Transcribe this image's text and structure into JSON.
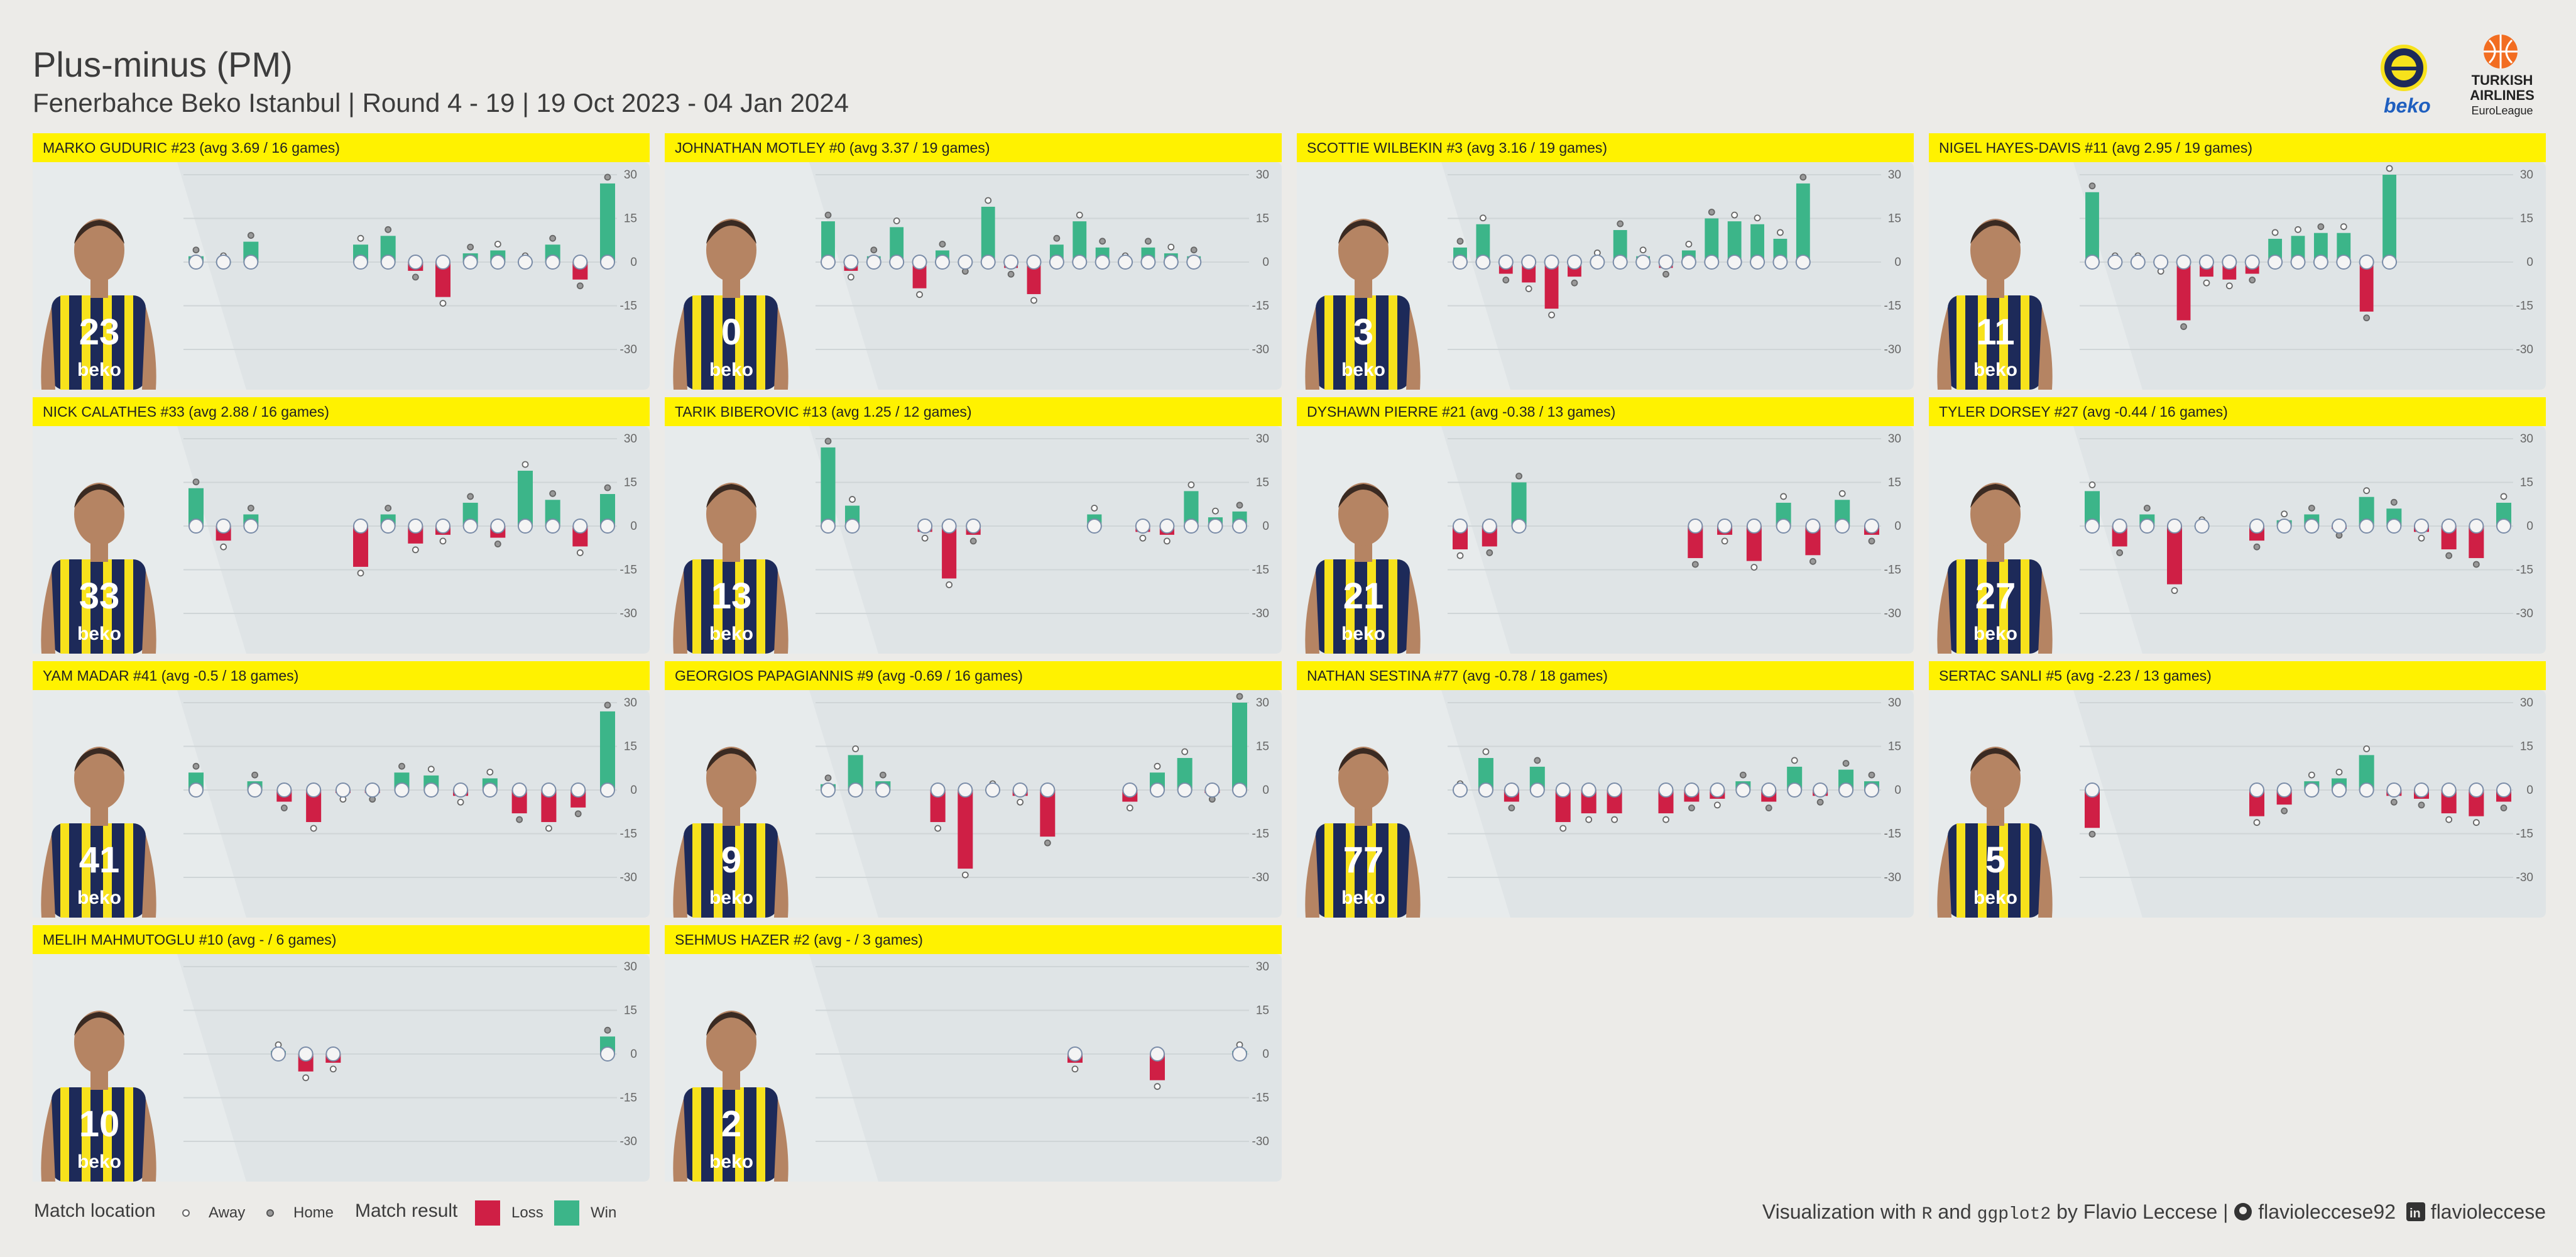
{
  "header": {
    "title": "Plus-minus (PM)",
    "subtitle": "Fenerbahce Beko Istanbul | Round  4 - 19 | 19  Oct 2023 - 04 Jan 2024",
    "brand_sponsor": "beko",
    "league_lines": [
      "TURKISH",
      "AIRLINES",
      "EuroLeague"
    ]
  },
  "colors": {
    "win": "#3cb589",
    "loss": "#cf1f45",
    "strip": "#fff200",
    "panel": "#dfe4e6",
    "jersey": "#1d2a59",
    "jersey_stripe": "#f7e21c"
  },
  "chart_data": {
    "type": "bar",
    "ylim": [
      -30,
      30
    ],
    "y_ticks": [
      30,
      15,
      0,
      -15,
      -30
    ],
    "panels": [
      {
        "label": "MARKO GUDURIC #23 (avg 3.69 / 16 games)",
        "number": "23",
        "games": [
          {
            "pm": 2,
            "home": true
          },
          {
            "pm": 0,
            "home": false
          },
          {
            "pm": 7,
            "home": true
          },
          null,
          null,
          null,
          {
            "pm": 6,
            "home": false
          },
          {
            "pm": 9,
            "home": true
          },
          {
            "pm": -3,
            "home": true
          },
          {
            "pm": -12,
            "home": false
          },
          {
            "pm": 3,
            "home": true
          },
          {
            "pm": 4,
            "home": false
          },
          {
            "pm": 0,
            "home": false
          },
          {
            "pm": 6,
            "home": true
          },
          {
            "pm": -6,
            "home": true
          },
          {
            "pm": 27,
            "home": true
          }
        ]
      },
      {
        "label": "JOHNATHAN MOTLEY #0 (avg 3.37 / 19 games)",
        "number": "0",
        "games": [
          {
            "pm": 14,
            "home": true
          },
          {
            "pm": -3,
            "home": false
          },
          {
            "pm": 2,
            "home": true
          },
          {
            "pm": 12,
            "home": false
          },
          {
            "pm": -9,
            "home": false
          },
          {
            "pm": 4,
            "home": true
          },
          {
            "pm": -1,
            "home": true
          },
          {
            "pm": 19,
            "home": false
          },
          {
            "pm": -2,
            "home": true
          },
          {
            "pm": -11,
            "home": false
          },
          {
            "pm": 6,
            "home": true
          },
          {
            "pm": 14,
            "home": false
          },
          {
            "pm": 5,
            "home": true
          },
          {
            "pm": 0,
            "home": false
          },
          {
            "pm": 5,
            "home": true
          },
          {
            "pm": 3,
            "home": false
          },
          {
            "pm": 2,
            "home": true
          },
          null,
          null
        ]
      },
      {
        "label": "SCOTTIE WILBEKIN #3 (avg 3.16 / 19 games)",
        "number": "3",
        "games": [
          {
            "pm": 5,
            "home": true
          },
          {
            "pm": 13,
            "home": false
          },
          {
            "pm": -4,
            "home": true
          },
          {
            "pm": -7,
            "home": false
          },
          {
            "pm": -16,
            "home": false
          },
          {
            "pm": -5,
            "home": true
          },
          {
            "pm": 1,
            "home": false
          },
          {
            "pm": 11,
            "home": true
          },
          {
            "pm": 2,
            "home": false
          },
          {
            "pm": -2,
            "home": true
          },
          {
            "pm": 4,
            "home": false
          },
          {
            "pm": 15,
            "home": true
          },
          {
            "pm": 14,
            "home": false
          },
          {
            "pm": 13,
            "home": false
          },
          {
            "pm": 8,
            "home": false
          },
          {
            "pm": 27,
            "home": true
          },
          null,
          null,
          null
        ]
      },
      {
        "label": "NIGEL HAYES-DAVIS #11 (avg 2.95 / 19 games)",
        "number": "11",
        "games": [
          {
            "pm": 24,
            "home": true
          },
          {
            "pm": 0,
            "home": false
          },
          {
            "pm": 0,
            "home": false
          },
          {
            "pm": -1,
            "home": false
          },
          {
            "pm": -20,
            "home": true
          },
          {
            "pm": -5,
            "home": false
          },
          {
            "pm": -6,
            "home": false
          },
          {
            "pm": -4,
            "home": true
          },
          {
            "pm": 8,
            "home": false
          },
          {
            "pm": 9,
            "home": false
          },
          {
            "pm": 10,
            "home": true
          },
          {
            "pm": 10,
            "home": false
          },
          {
            "pm": -17,
            "home": true
          },
          {
            "pm": 30,
            "home": false
          },
          null,
          null,
          null,
          null,
          null
        ]
      },
      {
        "label": "NICK CALATHES #33 (avg 2.88 / 16 games)",
        "number": "33",
        "games": [
          {
            "pm": 13,
            "home": true
          },
          {
            "pm": -5,
            "home": false
          },
          {
            "pm": 4,
            "home": true
          },
          null,
          null,
          null,
          {
            "pm": -14,
            "home": false
          },
          {
            "pm": 4,
            "home": true
          },
          {
            "pm": -6,
            "home": false
          },
          {
            "pm": -3,
            "home": false
          },
          {
            "pm": 8,
            "home": true
          },
          {
            "pm": -4,
            "home": true
          },
          {
            "pm": 19,
            "home": false
          },
          {
            "pm": 9,
            "home": true
          },
          {
            "pm": -7,
            "home": false
          },
          {
            "pm": 11,
            "home": true
          }
        ]
      },
      {
        "label": "TARIK BIBEROVIC #13 (avg 1.25 / 12 games)",
        "number": "13",
        "games": [
          {
            "pm": 27,
            "home": true
          },
          {
            "pm": 7,
            "home": false
          },
          null,
          null,
          {
            "pm": -2,
            "home": false
          },
          {
            "pm": -18,
            "home": false
          },
          {
            "pm": -3,
            "home": true
          },
          null,
          null,
          null,
          null,
          {
            "pm": 4,
            "home": false
          },
          null,
          {
            "pm": -2,
            "home": false
          },
          {
            "pm": -3,
            "home": false
          },
          {
            "pm": 12,
            "home": false
          },
          {
            "pm": 3,
            "home": false
          },
          {
            "pm": 5,
            "home": true
          }
        ]
      },
      {
        "label": "DYSHAWN PIERRE #21 (avg -0.38 / 13 games)",
        "number": "21",
        "games": [
          {
            "pm": -8,
            "home": false
          },
          {
            "pm": -7,
            "home": true
          },
          {
            "pm": 15,
            "home": true
          },
          null,
          null,
          null,
          null,
          null,
          {
            "pm": -11,
            "home": true
          },
          {
            "pm": -3,
            "home": false
          },
          {
            "pm": -12,
            "home": false
          },
          {
            "pm": 8,
            "home": false
          },
          {
            "pm": -10,
            "home": true
          },
          {
            "pm": 9,
            "home": false
          },
          {
            "pm": -3,
            "home": true
          }
        ]
      },
      {
        "label": "TYLER DORSEY #27 (avg -0.44 / 16 games)",
        "number": "27",
        "games": [
          {
            "pm": 12,
            "home": false
          },
          {
            "pm": -7,
            "home": true
          },
          {
            "pm": 4,
            "home": true
          },
          {
            "pm": -20,
            "home": false
          },
          {
            "pm": 0,
            "home": false
          },
          null,
          {
            "pm": -5,
            "home": true
          },
          {
            "pm": 2,
            "home": false
          },
          {
            "pm": 4,
            "home": true
          },
          {
            "pm": -1,
            "home": true
          },
          {
            "pm": 10,
            "home": false
          },
          {
            "pm": 6,
            "home": true
          },
          {
            "pm": -2,
            "home": false
          },
          {
            "pm": -8,
            "home": true
          },
          {
            "pm": -11,
            "home": true
          },
          {
            "pm": 8,
            "home": false
          }
        ]
      },
      {
        "label": "YAM MADAR #41 (avg -0.5 / 18 games)",
        "number": "41",
        "games": [
          {
            "pm": 6,
            "home": true
          },
          null,
          {
            "pm": 3,
            "home": true
          },
          {
            "pm": -4,
            "home": true
          },
          {
            "pm": -11,
            "home": false
          },
          {
            "pm": -1,
            "home": false
          },
          {
            "pm": -1,
            "home": true
          },
          {
            "pm": 6,
            "home": true
          },
          {
            "pm": 5,
            "home": false
          },
          {
            "pm": -2,
            "home": false
          },
          {
            "pm": 4,
            "home": false
          },
          {
            "pm": -8,
            "home": true
          },
          {
            "pm": -11,
            "home": false
          },
          {
            "pm": -6,
            "home": true
          },
          {
            "pm": 27,
            "home": true
          }
        ]
      },
      {
        "label": "GEORGIOS PAPAGIANNIS #9 (avg -0.69 / 16 games)",
        "number": "9",
        "games": [
          {
            "pm": 2,
            "home": true
          },
          {
            "pm": 12,
            "home": false
          },
          {
            "pm": 3,
            "home": true
          },
          null,
          {
            "pm": -11,
            "home": false
          },
          {
            "pm": -27,
            "home": false
          },
          {
            "pm": 0,
            "home": false
          },
          {
            "pm": -2,
            "home": false
          },
          {
            "pm": -16,
            "home": true
          },
          null,
          null,
          {
            "pm": -4,
            "home": false
          },
          {
            "pm": 6,
            "home": false
          },
          {
            "pm": 11,
            "home": false
          },
          {
            "pm": -1,
            "home": true
          },
          {
            "pm": 30,
            "home": true
          }
        ]
      },
      {
        "label": "NATHAN SESTINA #77 (avg -0.78 / 18 games)",
        "number": "77",
        "games": [
          {
            "pm": 0,
            "home": false
          },
          {
            "pm": 11,
            "home": false
          },
          {
            "pm": -4,
            "home": true
          },
          {
            "pm": 8,
            "home": true
          },
          {
            "pm": -11,
            "home": false
          },
          {
            "pm": -8,
            "home": false
          },
          {
            "pm": -8,
            "home": false
          },
          null,
          {
            "pm": -8,
            "home": false
          },
          {
            "pm": -4,
            "home": true
          },
          {
            "pm": -3,
            "home": false
          },
          {
            "pm": 3,
            "home": true
          },
          {
            "pm": -4,
            "home": true
          },
          {
            "pm": 8,
            "home": false
          },
          {
            "pm": -2,
            "home": true
          },
          {
            "pm": 7,
            "home": true
          },
          {
            "pm": 3,
            "home": true
          }
        ]
      },
      {
        "label": "SERTAC SANLI #5 (avg -2.23 / 13 games)",
        "number": "5",
        "games": [
          {
            "pm": -13,
            "home": true
          },
          null,
          null,
          null,
          null,
          null,
          {
            "pm": -9,
            "home": false
          },
          {
            "pm": -5,
            "home": true
          },
          {
            "pm": 3,
            "home": false
          },
          {
            "pm": 4,
            "home": false
          },
          {
            "pm": 12,
            "home": false
          },
          {
            "pm": -2,
            "home": true
          },
          {
            "pm": -3,
            "home": true
          },
          {
            "pm": -8,
            "home": false
          },
          {
            "pm": -9,
            "home": false
          },
          {
            "pm": -4,
            "home": true
          }
        ]
      },
      {
        "label": "MELIH MAHMUTOGLU #10 (avg - / 6 games)",
        "number": "10",
        "games": [
          null,
          null,
          null,
          {
            "pm": 1,
            "home": false
          },
          {
            "pm": -6,
            "home": false
          },
          {
            "pm": -3,
            "home": false
          },
          null,
          null,
          null,
          null,
          null,
          null,
          null,
          null,
          null,
          {
            "pm": 6,
            "home": true
          }
        ]
      },
      {
        "label": "SEHMUS HAZER #2 (avg - / 3 games)",
        "number": "2",
        "games": [
          null,
          null,
          null,
          {
            "pm": -3,
            "home": false
          },
          {
            "pm": -9,
            "home": false
          },
          {
            "pm": 1,
            "home": false
          }
        ]
      }
    ]
  },
  "footer": {
    "loc_title": "Match location",
    "away": "Away",
    "home": "Home",
    "res_title": "Match result",
    "loss": "Loss",
    "win": "Win",
    "credit_prefix": "Visualization  with",
    "credit_r": "R",
    "credit_and": "and",
    "credit_pkg": "ggplot2",
    "credit_by": "by Flavio Leccese |",
    "github": "flavioleccese92",
    "linkedin": "flavioleccese"
  }
}
